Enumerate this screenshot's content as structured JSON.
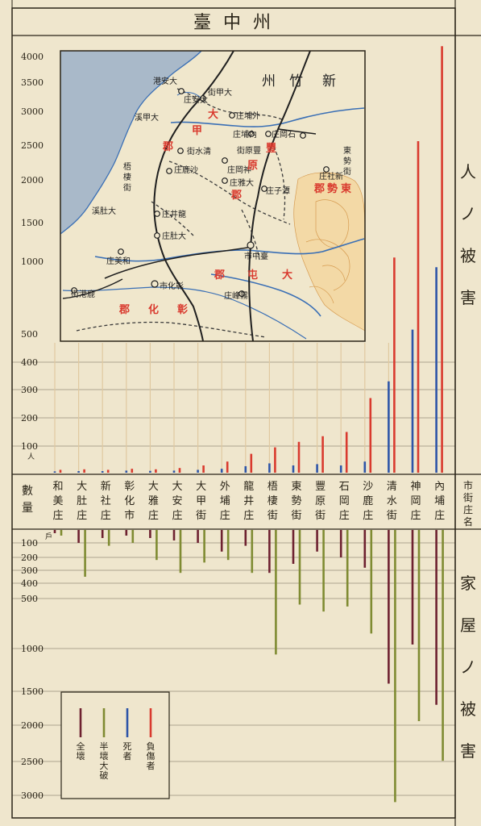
{
  "title": "臺 中 州",
  "chart_data": {
    "type": "bar",
    "title": "臺中州",
    "casualty_axis": {
      "ticks": [
        100,
        200,
        300,
        400,
        500,
        1000,
        1500,
        2000,
        2500,
        3000,
        3500,
        4000
      ],
      "unit": "人"
    },
    "house_axis": {
      "ticks": [
        100,
        200,
        300,
        400,
        500,
        1000,
        1500,
        2000,
        2500,
        3000
      ],
      "unit": "戶"
    },
    "axis_header": "數量",
    "category_header": "市街庄名",
    "section_labels": {
      "casualties": "人ノ被害",
      "houses": "家屋ノ被害"
    },
    "categories": [
      "和美庄",
      "大肚庄",
      "新社庄",
      "彰化市",
      "大雅庄",
      "大安庄",
      "大甲街",
      "外埔庄",
      "龍井庄",
      "梧棲街",
      "東勢街",
      "豐原街",
      "石岡庄",
      "沙鹿庄",
      "清水街",
      "神岡庄",
      "內埔庄"
    ],
    "series_casualties": [
      {
        "name": "死者",
        "color": "#2e55a8",
        "values": [
          2,
          3,
          3,
          5,
          4,
          5,
          8,
          12,
          22,
          33,
          25,
          30,
          25,
          40,
          330,
          530,
          960
        ]
      },
      {
        "name": "負傷者",
        "color": "#d93a2e",
        "values": [
          8,
          10,
          8,
          12,
          10,
          15,
          25,
          40,
          70,
          95,
          115,
          135,
          150,
          270,
          1050,
          2560,
          4200
        ]
      }
    ],
    "series_houses": [
      {
        "name": "全壞",
        "color": "#6e2130",
        "values": [
          20,
          100,
          60,
          40,
          60,
          80,
          100,
          160,
          120,
          320,
          250,
          160,
          200,
          280,
          1410,
          960,
          1700
        ]
      },
      {
        "name": "半壞大破",
        "color": "#7f8b32",
        "values": [
          40,
          350,
          120,
          100,
          220,
          320,
          240,
          220,
          320,
          1070,
          560,
          630,
          580,
          850,
          3100,
          1940,
          2490
        ]
      }
    ],
    "legend_labels": [
      "全壞",
      "半壞大破",
      "死者",
      "負傷者"
    ]
  },
  "map": {
    "sea_label": "",
    "region_labels": [
      "新竹州",
      "大甲郡",
      "豐原郡",
      "東勢郡",
      "大屯郡",
      "彰化郡"
    ],
    "places": [
      "大安港",
      "大安庄",
      "大甲街",
      "外埔庄",
      "大甲溪",
      "內埔庄",
      "豐原街",
      "石岡庄",
      "東勢街",
      "新社庄",
      "清水街",
      "沙鹿庄",
      "神岡庄",
      "梧棲街",
      "大雅庄",
      "潭子庄",
      "龍井庄",
      "大肚庄",
      "大肚溪",
      "和美庄",
      "臺中市",
      "彰化市",
      "鹿港街",
      "霧峰庄"
    ]
  }
}
